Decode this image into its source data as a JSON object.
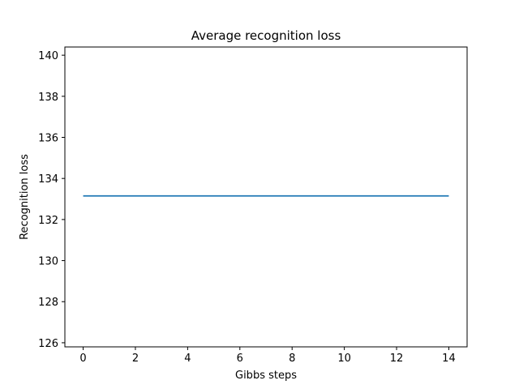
{
  "chart_data": {
    "type": "line",
    "title": "Average recognition loss",
    "xlabel": "Gibbs steps",
    "ylabel": "Recognition loss",
    "xlim": [
      -0.7,
      14.7
    ],
    "ylim": [
      125.8,
      140.4
    ],
    "xticks": [
      0,
      2,
      4,
      6,
      8,
      10,
      12,
      14
    ],
    "yticks": [
      126,
      128,
      130,
      132,
      134,
      136,
      138,
      140
    ],
    "grid": false,
    "series": [
      {
        "color": "#1f77b4",
        "x": [
          0,
          1,
          2,
          3,
          4,
          5,
          6,
          7,
          8,
          9,
          10,
          11,
          12,
          13,
          14
        ],
        "y": [
          133.15,
          133.15,
          133.15,
          133.15,
          133.15,
          133.15,
          133.15,
          133.15,
          133.15,
          133.15,
          133.15,
          133.15,
          133.15,
          133.15,
          133.15
        ]
      }
    ]
  }
}
